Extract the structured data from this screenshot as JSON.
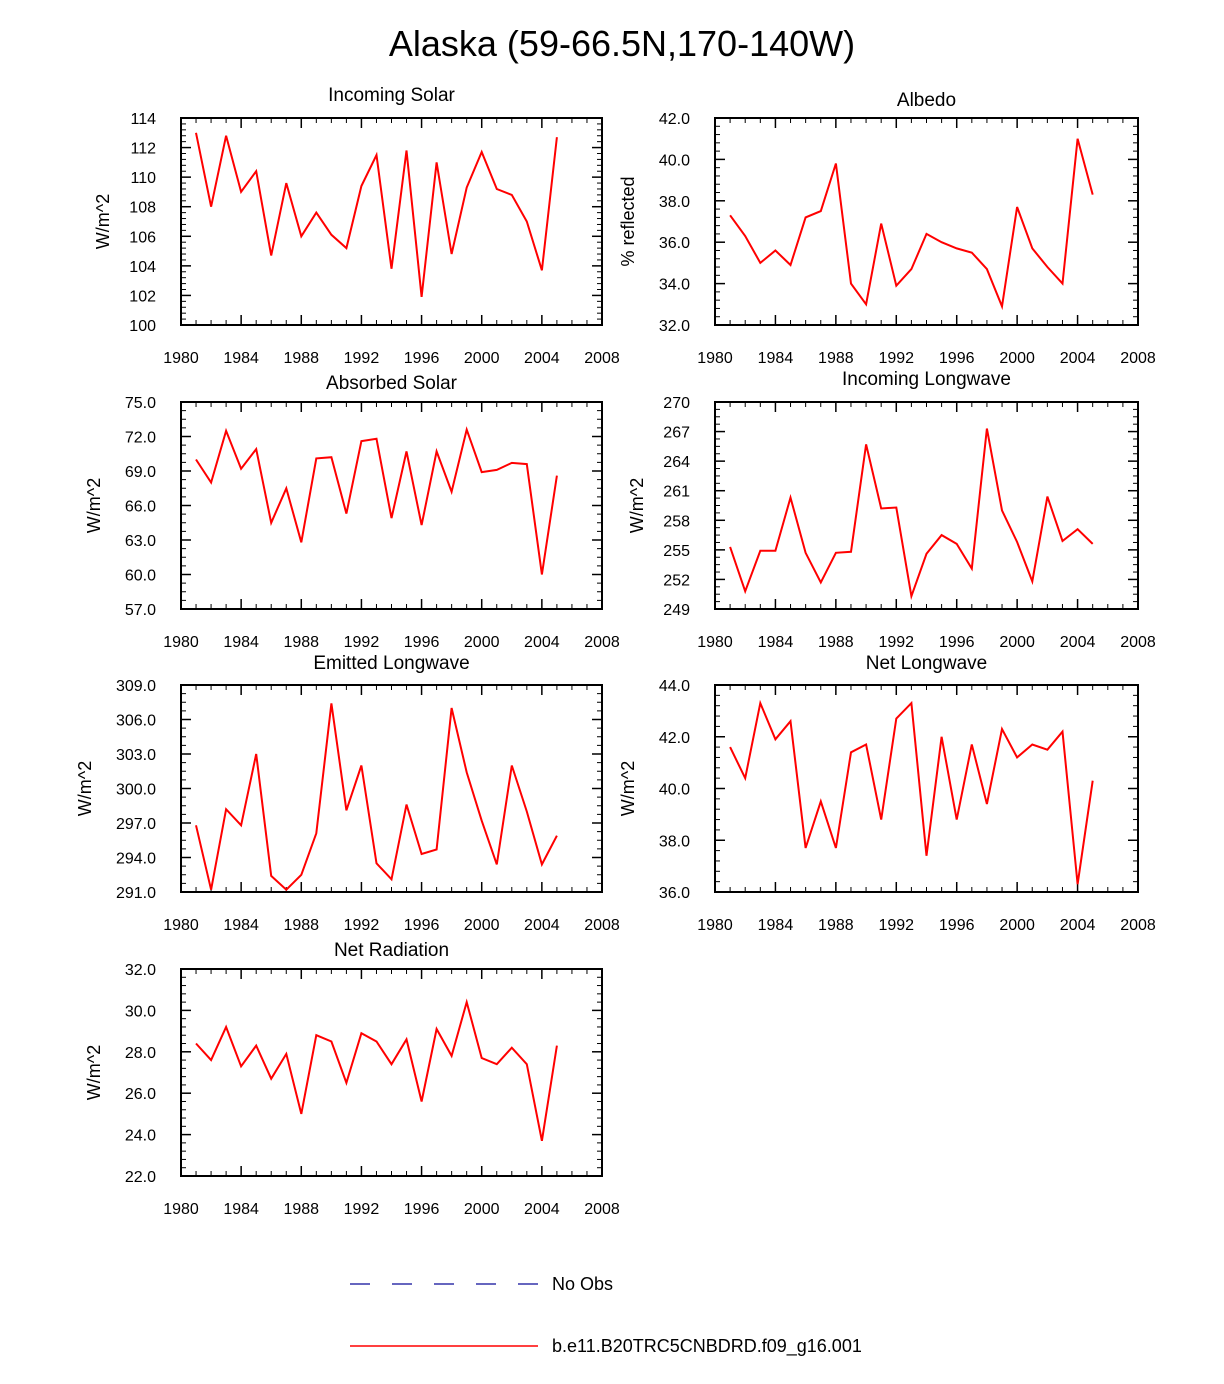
{
  "title": "Alaska (59-66.5N,170-140W)",
  "colors": {
    "model": "#ff0000",
    "obs": "#3333aa",
    "axis": "#000000"
  },
  "legend": [
    {
      "label": "No Obs",
      "style": "dashed",
      "color": "#3333aa"
    },
    {
      "label": "b.e11.B20TRC5CNBDRD.f09_g16.001",
      "style": "solid",
      "color": "#ff0000"
    }
  ],
  "chart_data": [
    {
      "type": "line",
      "title": "Incoming Solar",
      "ylabel": "W/m^2",
      "xlim": [
        1980,
        2008
      ],
      "ylim": [
        100,
        114
      ],
      "xticks": [
        "1980",
        "1984",
        "1988",
        "1992",
        "1996",
        "2000",
        "2004",
        "2008"
      ],
      "yticks": [
        "100",
        "102",
        "104",
        "106",
        "108",
        "110",
        "112",
        "114"
      ],
      "x": [
        1981,
        1982,
        1983,
        1984,
        1985,
        1986,
        1987,
        1988,
        1989,
        1990,
        1991,
        1992,
        1993,
        1994,
        1995,
        1996,
        1997,
        1998,
        1999,
        2000,
        2001,
        2002,
        2003,
        2004,
        2005
      ],
      "series": [
        {
          "values": [
            113.0,
            108.0,
            112.8,
            109.0,
            110.4,
            104.7,
            109.6,
            106.0,
            107.6,
            106.1,
            105.2,
            109.4,
            111.5,
            103.8,
            111.8,
            101.9,
            111.0,
            104.8,
            109.3,
            111.7,
            109.2,
            108.8,
            107.0,
            103.7,
            112.7
          ]
        }
      ]
    },
    {
      "type": "line",
      "title": "Albedo",
      "ylabel": "% reflected",
      "xlim": [
        1980,
        2008
      ],
      "ylim": [
        32,
        42
      ],
      "xticks": [
        "1980",
        "1984",
        "1988",
        "1992",
        "1996",
        "2000",
        "2004",
        "2008"
      ],
      "yticks": [
        "32.0",
        "34.0",
        "36.0",
        "38.0",
        "40.0",
        "42.0"
      ],
      "x": [
        1981,
        1982,
        1983,
        1984,
        1985,
        1986,
        1987,
        1988,
        1989,
        1990,
        1991,
        1992,
        1993,
        1994,
        1995,
        1996,
        1997,
        1998,
        1999,
        2000,
        2001,
        2002,
        2003,
        2004,
        2005
      ],
      "series": [
        {
          "values": [
            37.3,
            36.3,
            35.0,
            35.6,
            34.9,
            37.2,
            37.5,
            39.8,
            34.0,
            33.0,
            36.9,
            33.9,
            34.7,
            36.4,
            36.0,
            35.7,
            35.5,
            34.7,
            32.9,
            37.7,
            35.7,
            34.8,
            34.0,
            41.0,
            38.3
          ]
        }
      ]
    },
    {
      "type": "line",
      "title": "Absorbed Solar",
      "ylabel": "W/m^2",
      "xlim": [
        1980,
        2008
      ],
      "ylim": [
        57,
        75
      ],
      "xticks": [
        "1980",
        "1984",
        "1988",
        "1992",
        "1996",
        "2000",
        "2004",
        "2008"
      ],
      "yticks": [
        "57.0",
        "60.0",
        "63.0",
        "66.0",
        "69.0",
        "72.0",
        "75.0"
      ],
      "x": [
        1981,
        1982,
        1983,
        1984,
        1985,
        1986,
        1987,
        1988,
        1989,
        1990,
        1991,
        1992,
        1993,
        1994,
        1995,
        1996,
        1997,
        1998,
        1999,
        2000,
        2001,
        2002,
        2003,
        2004,
        2005
      ],
      "series": [
        {
          "values": [
            70.0,
            68.0,
            72.5,
            69.2,
            70.9,
            64.5,
            67.5,
            62.8,
            70.1,
            70.2,
            65.3,
            71.6,
            71.8,
            64.9,
            70.7,
            64.3,
            70.7,
            67.2,
            72.6,
            68.9,
            69.1,
            69.7,
            69.6,
            60.0,
            68.6
          ]
        }
      ]
    },
    {
      "type": "line",
      "title": "Incoming Longwave",
      "ylabel": "W/m^2",
      "xlim": [
        1980,
        2008
      ],
      "ylim": [
        249,
        270
      ],
      "xticks": [
        "1980",
        "1984",
        "1988",
        "1992",
        "1996",
        "2000",
        "2004",
        "2008"
      ],
      "yticks": [
        "249",
        "252",
        "255",
        "258",
        "261",
        "264",
        "267",
        "270"
      ],
      "x": [
        1981,
        1982,
        1983,
        1984,
        1985,
        1986,
        1987,
        1988,
        1989,
        1990,
        1991,
        1992,
        1993,
        1994,
        1995,
        1996,
        1997,
        1998,
        1999,
        2000,
        2001,
        2002,
        2003,
        2004,
        2005
      ],
      "series": [
        {
          "values": [
            255.3,
            250.8,
            254.9,
            254.9,
            260.3,
            254.7,
            251.7,
            254.7,
            254.8,
            265.7,
            259.2,
            259.3,
            250.3,
            254.6,
            256.5,
            255.6,
            253.1,
            267.3,
            259.0,
            255.8,
            251.8,
            260.4,
            255.9,
            257.1,
            255.6
          ]
        }
      ]
    },
    {
      "type": "line",
      "title": "Emitted Longwave",
      "ylabel": "W/m^2",
      "xlim": [
        1980,
        2008
      ],
      "ylim": [
        291,
        309
      ],
      "xticks": [
        "1980",
        "1984",
        "1988",
        "1992",
        "1996",
        "2000",
        "2004",
        "2008"
      ],
      "yticks": [
        "291.0",
        "294.0",
        "297.0",
        "300.0",
        "303.0",
        "306.0",
        "309.0"
      ],
      "x": [
        1981,
        1982,
        1983,
        1984,
        1985,
        1986,
        1987,
        1988,
        1989,
        1990,
        1991,
        1992,
        1993,
        1994,
        1995,
        1996,
        1997,
        1998,
        1999,
        2000,
        2001,
        2002,
        2003,
        2004,
        2005
      ],
      "series": [
        {
          "values": [
            296.8,
            291.2,
            298.2,
            296.8,
            303.0,
            292.4,
            291.2,
            292.5,
            296.1,
            307.4,
            298.1,
            302.0,
            293.5,
            292.1,
            298.6,
            294.3,
            294.7,
            307.0,
            301.4,
            297.2,
            293.4,
            302.0,
            298.0,
            293.4,
            295.9
          ]
        }
      ]
    },
    {
      "type": "line",
      "title": "Net Longwave",
      "ylabel": "W/m^2",
      "xlim": [
        1980,
        2008
      ],
      "ylim": [
        36,
        44
      ],
      "xticks": [
        "1980",
        "1984",
        "1988",
        "1992",
        "1996",
        "2000",
        "2004",
        "2008"
      ],
      "yticks": [
        "36.0",
        "38.0",
        "40.0",
        "42.0",
        "44.0"
      ],
      "x": [
        1981,
        1982,
        1983,
        1984,
        1985,
        1986,
        1987,
        1988,
        1989,
        1990,
        1991,
        1992,
        1993,
        1994,
        1995,
        1996,
        1997,
        1998,
        1999,
        2000,
        2001,
        2002,
        2003,
        2004,
        2005
      ],
      "series": [
        {
          "values": [
            41.6,
            40.4,
            43.3,
            41.9,
            42.6,
            37.7,
            39.5,
            37.7,
            41.4,
            41.7,
            38.8,
            42.7,
            43.3,
            37.4,
            42.0,
            38.8,
            41.7,
            39.4,
            42.3,
            41.2,
            41.7,
            41.5,
            42.2,
            36.3,
            40.3
          ]
        }
      ]
    },
    {
      "type": "line",
      "title": "Net Radiation",
      "ylabel": "W/m^2",
      "xlim": [
        1980,
        2008
      ],
      "ylim": [
        22,
        32
      ],
      "xticks": [
        "1980",
        "1984",
        "1988",
        "1992",
        "1996",
        "2000",
        "2004",
        "2008"
      ],
      "yticks": [
        "22.0",
        "24.0",
        "26.0",
        "28.0",
        "30.0",
        "32.0"
      ],
      "x": [
        1981,
        1982,
        1983,
        1984,
        1985,
        1986,
        1987,
        1988,
        1989,
        1990,
        1991,
        1992,
        1993,
        1994,
        1995,
        1996,
        1997,
        1998,
        1999,
        2000,
        2001,
        2002,
        2003,
        2004,
        2005
      ],
      "series": [
        {
          "values": [
            28.4,
            27.6,
            29.2,
            27.3,
            28.3,
            26.7,
            27.9,
            25.0,
            28.8,
            28.5,
            26.5,
            28.9,
            28.5,
            27.4,
            28.6,
            25.6,
            29.1,
            27.8,
            30.4,
            27.7,
            27.4,
            28.2,
            27.4,
            23.7,
            28.3
          ]
        }
      ]
    }
  ]
}
